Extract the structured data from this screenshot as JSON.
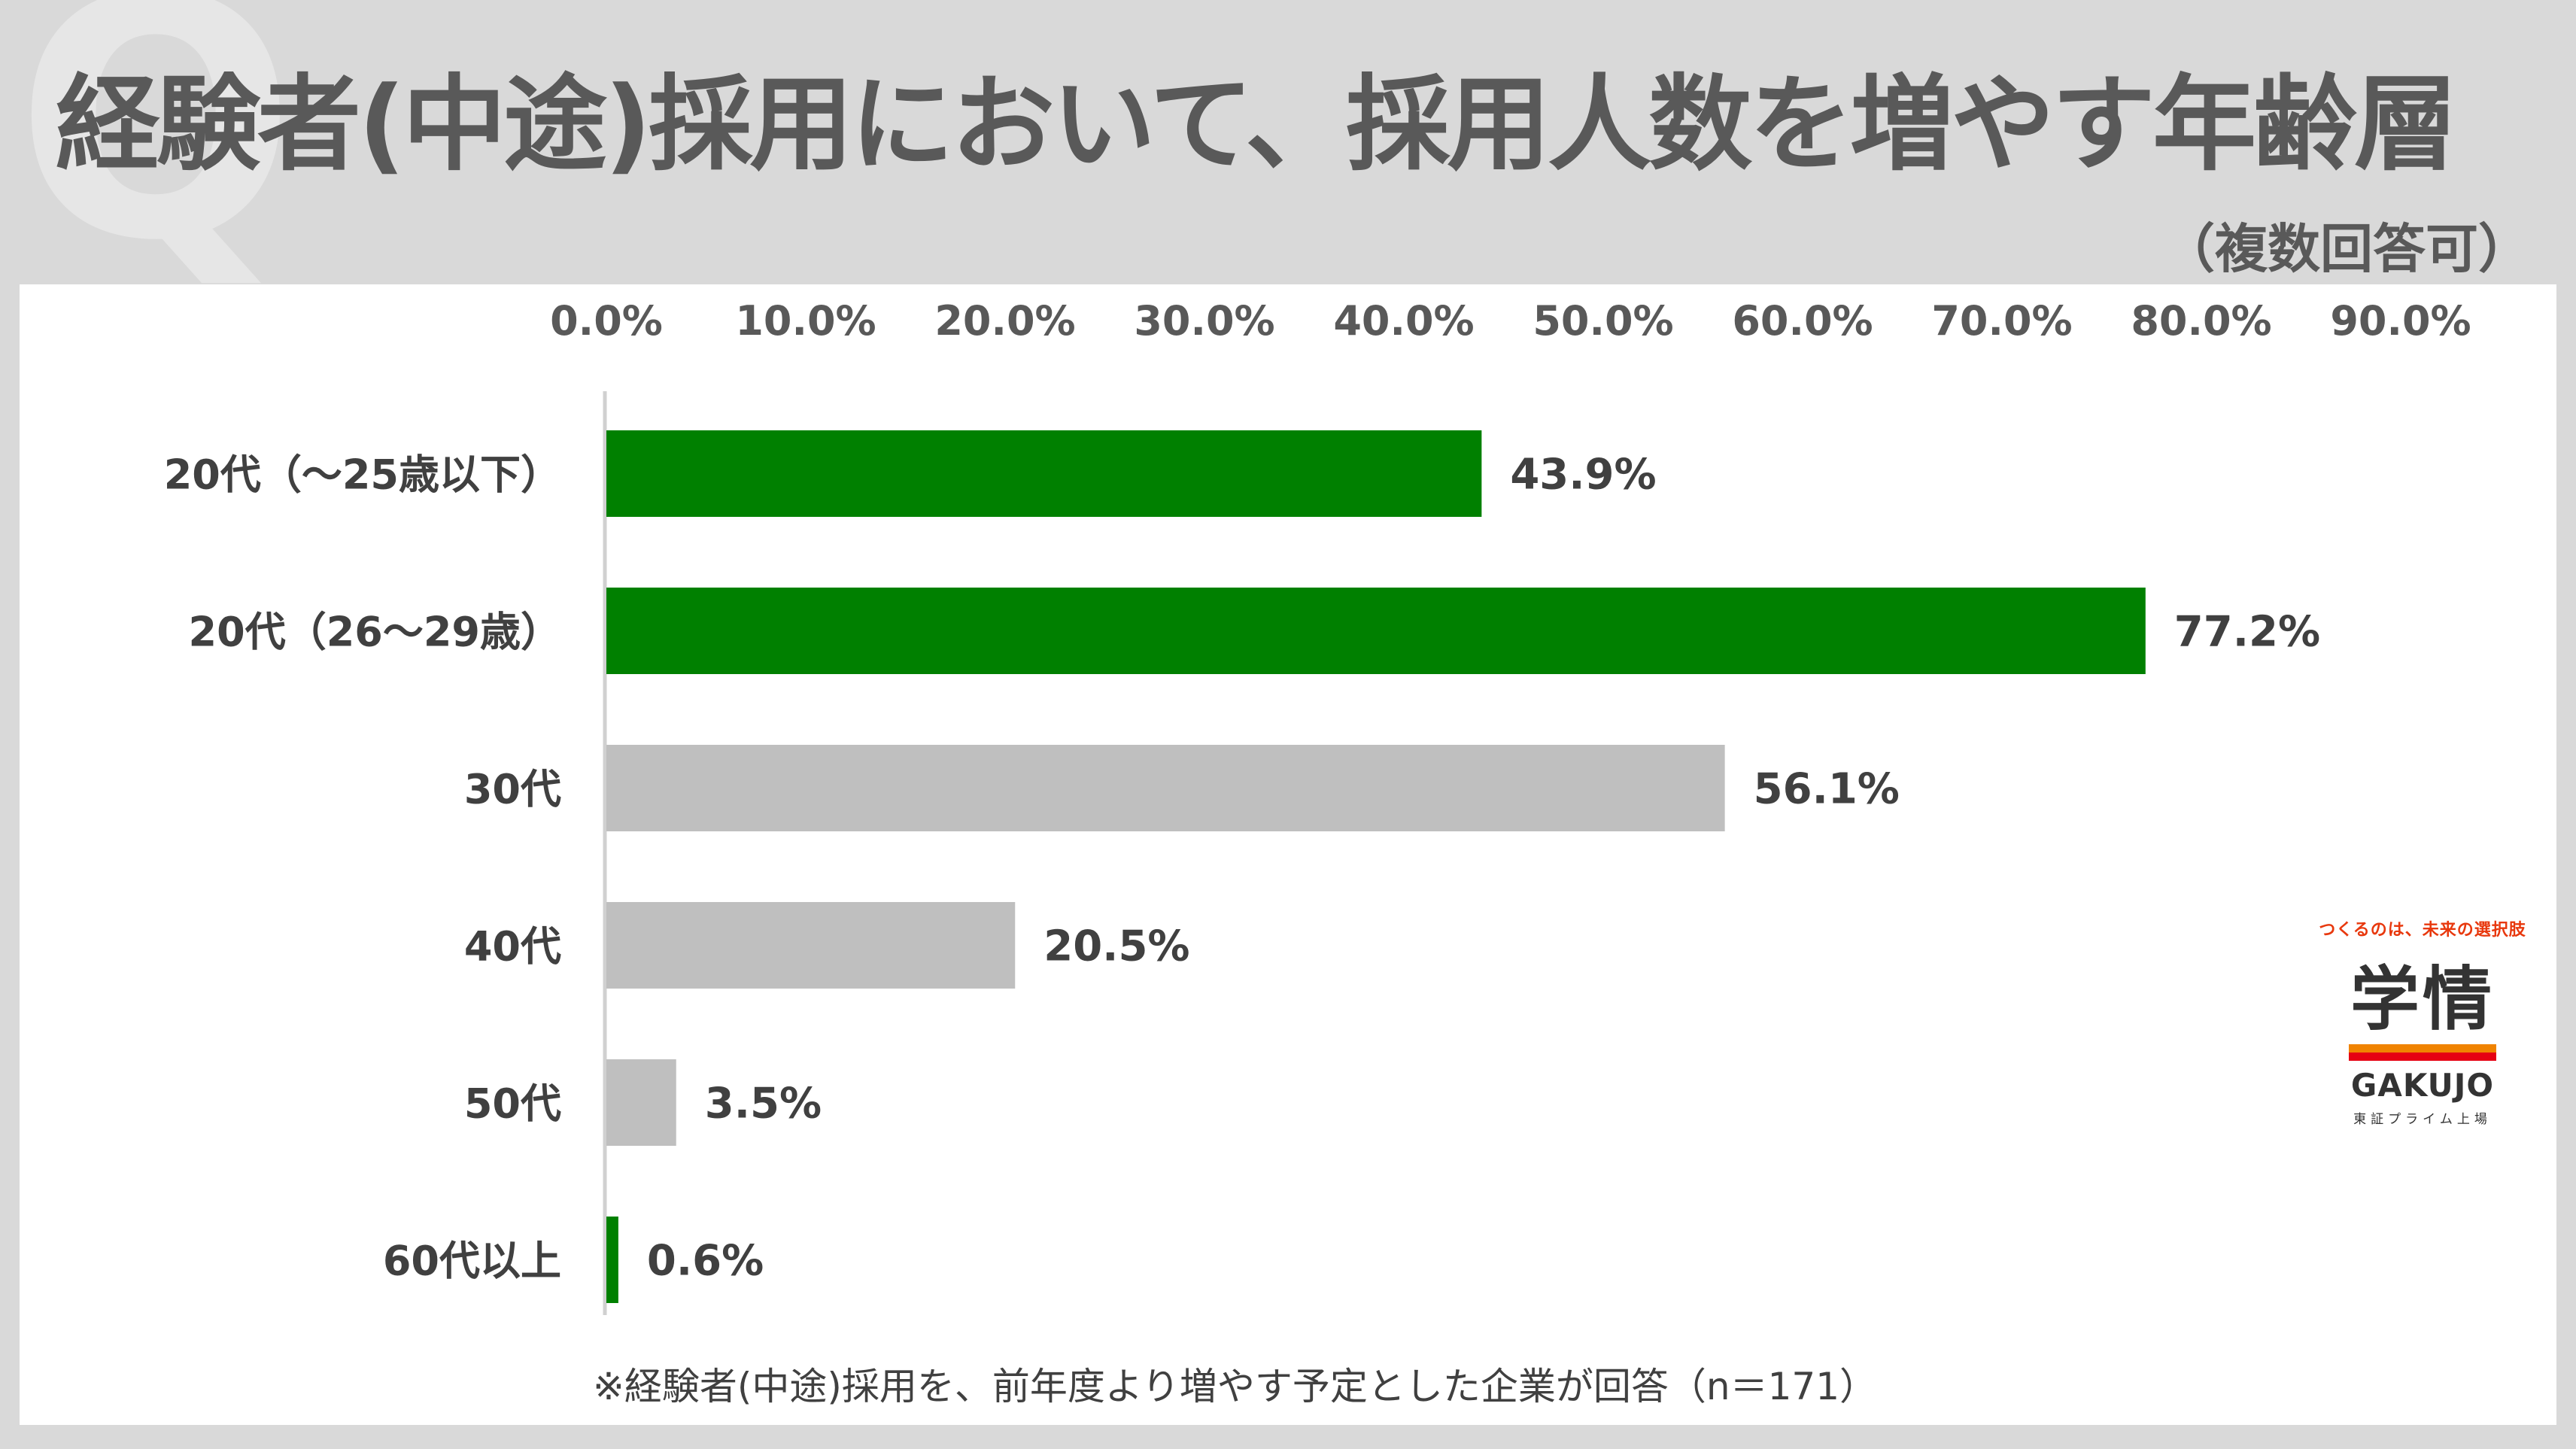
{
  "header": {
    "title": "経験者(中途)採用において、採用人数を増やす年齢層",
    "subtitle": "（複数回答可）"
  },
  "chart_data": {
    "type": "bar",
    "orientation": "horizontal",
    "categories": [
      "20代（～25歳以下）",
      "20代（26～29歳）",
      "30代",
      "40代",
      "50代",
      "60代以上"
    ],
    "values": [
      43.9,
      77.2,
      56.1,
      20.5,
      3.5,
      0.6
    ],
    "value_labels": [
      "43.9%",
      "77.2%",
      "56.1%",
      "20.5%",
      "3.5%",
      "0.6%"
    ],
    "colors": [
      "#008000",
      "#008000",
      "#bfbfbf",
      "#bfbfbf",
      "#bfbfbf",
      "#008000"
    ],
    "x_ticks": [
      "0.0%",
      "10.0%",
      "20.0%",
      "30.0%",
      "40.0%",
      "50.0%",
      "60.0%",
      "70.0%",
      "80.0%",
      "90.0%"
    ],
    "xlim": [
      0,
      90
    ],
    "axis_position": "top",
    "grid": false,
    "title": "",
    "xlabel": "",
    "ylabel": ""
  },
  "footnote": "※経験者(中途)採用を、前年度より増やす予定とした企業が回答（n＝171）",
  "logo": {
    "tagline": "つくるのは、未来の選択肢",
    "name_jp": "学情",
    "name_en": "GAKUJO",
    "sub": "東証プライム上場"
  },
  "colors": {
    "background": "#d9d9d9",
    "panel": "#ffffff",
    "text": "#595959",
    "accent": "#008000",
    "neutral": "#bfbfbf"
  }
}
